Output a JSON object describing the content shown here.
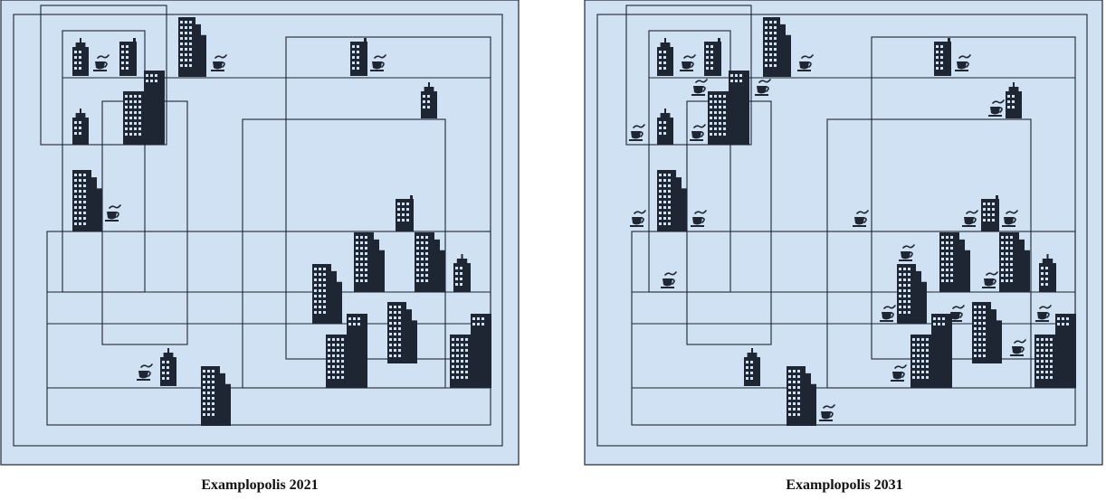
{
  "panels": [
    {
      "caption": "Examplopolis 2021",
      "buildings": [
        {
          "type": "tower"
        },
        {
          "type": "tower"
        },
        {
          "type": "tower"
        },
        {
          "type": "tower"
        },
        {
          "type": "tower"
        },
        {
          "type": "tower"
        },
        {
          "type": "tower"
        },
        {
          "type": "tower"
        },
        {
          "type": "tower"
        },
        {
          "type": "tower"
        },
        {
          "type": "tower"
        },
        {
          "type": "tower"
        },
        {
          "type": "tower"
        },
        {
          "type": "tower"
        },
        {
          "type": "tower"
        },
        {
          "type": "tower"
        },
        {
          "type": "tower"
        },
        {
          "type": "tower"
        },
        {
          "type": "tower"
        }
      ],
      "cafes": 6
    },
    {
      "caption": "Examplopolis 2031",
      "buildings": [
        {
          "type": "tower"
        },
        {
          "type": "tower"
        },
        {
          "type": "tower"
        },
        {
          "type": "tower"
        },
        {
          "type": "tower"
        },
        {
          "type": "tower"
        },
        {
          "type": "tower"
        },
        {
          "type": "tower"
        },
        {
          "type": "tower"
        },
        {
          "type": "tower"
        },
        {
          "type": "tower"
        },
        {
          "type": "tower"
        },
        {
          "type": "tower"
        },
        {
          "type": "tower"
        },
        {
          "type": "tower"
        },
        {
          "type": "tower"
        },
        {
          "type": "tower"
        },
        {
          "type": "tower"
        },
        {
          "type": "tower"
        }
      ],
      "cafes": 22
    }
  ]
}
